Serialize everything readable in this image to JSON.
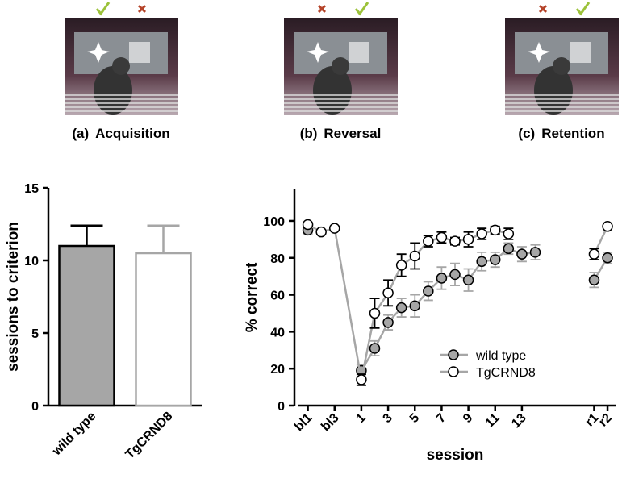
{
  "panels": [
    {
      "label": "(a)",
      "caption": "Acquisition"
    },
    {
      "label": "(b)",
      "caption": "Reversal"
    },
    {
      "label": "(c)",
      "caption": "Retention"
    }
  ],
  "chart_data": [
    {
      "type": "bar",
      "ylabel": "sessions to criterion",
      "categories": [
        "wild type",
        "TgCRND8"
      ],
      "values": [
        11,
        10.5
      ],
      "errors": [
        1.4,
        1.9
      ],
      "fills": [
        "#a6a6a6",
        "#ffffff"
      ],
      "edges": [
        "#000000",
        "#a6a6a6"
      ],
      "ylim": [
        0,
        15
      ],
      "yticks": [
        0,
        5,
        10,
        15
      ]
    },
    {
      "type": "line",
      "xlabel": "session",
      "ylabel": "% correct",
      "x": [
        -3,
        -2,
        -1,
        1,
        2,
        3,
        4,
        5,
        6,
        7,
        8,
        9,
        10,
        11,
        12,
        13,
        14,
        18.4,
        19.4
      ],
      "xlim": [
        -4,
        20
      ],
      "xticks": [
        {
          "value": -3,
          "label": "bl1"
        },
        {
          "value": -1,
          "label": "bl3"
        },
        1,
        3,
        5,
        7,
        9,
        11,
        13,
        {
          "value": 18.4,
          "label": "r1"
        },
        {
          "value": 19.4,
          "label": "r2"
        }
      ],
      "ylim": [
        0,
        117
      ],
      "yticks": [
        0,
        20,
        40,
        60,
        80,
        100
      ],
      "series": [
        {
          "name": "wild type",
          "color": "#a6a6a6",
          "edge": "#000000",
          "values": [
            95,
            null,
            null,
            19,
            31,
            45,
            53,
            54,
            62,
            69,
            71,
            68,
            78,
            79,
            85,
            82,
            83,
            68,
            80
          ],
          "errors": [
            2,
            null,
            null,
            3,
            4,
            4,
            5,
            6,
            5,
            6,
            6,
            6,
            5,
            4,
            3,
            4,
            4,
            4,
            3
          ]
        },
        {
          "name": "TgCRND8",
          "color": "#ffffff",
          "edge": "#000000",
          "values": [
            98,
            94,
            96,
            14,
            50,
            61,
            76,
            81,
            89,
            91,
            89,
            90,
            93,
            95,
            93,
            null,
            null,
            82,
            97
          ],
          "errors": [
            1,
            1,
            1,
            3,
            8,
            7,
            6,
            7,
            3,
            3,
            2,
            4,
            3,
            2,
            3,
            null,
            null,
            3,
            1
          ]
        }
      ]
    }
  ]
}
